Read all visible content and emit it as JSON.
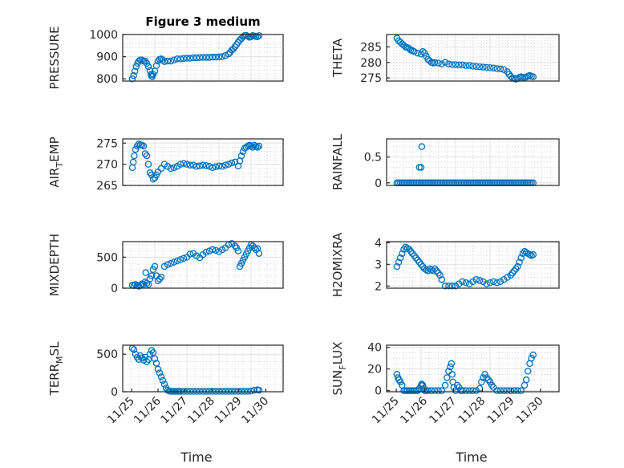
{
  "figure": {
    "x_label": "Time",
    "marker_color": "#0072BD"
  },
  "chart_data": [
    {
      "id": "pressure",
      "type": "scatter",
      "title": "Figure 3 medium",
      "ylabel": "PRESSURE",
      "ylabel_sub": "",
      "ylim": [
        790,
        1000
      ],
      "yticks": [
        800,
        900,
        1000
      ],
      "yminor_step": 20,
      "xlim": [
        0,
        5
      ],
      "xticks": [],
      "xticklabels": [],
      "x": [
        0.3,
        0.34,
        0.38,
        0.42,
        0.46,
        0.5,
        0.55,
        0.6,
        0.65,
        0.7,
        0.75,
        0.8,
        0.85,
        0.88,
        0.9,
        0.92,
        0.95,
        1.0,
        1.05,
        1.1,
        1.15,
        1.2,
        1.25,
        1.3,
        1.4,
        1.5,
        1.6,
        1.7,
        1.8,
        1.9,
        2.0,
        2.1,
        2.2,
        2.3,
        2.4,
        2.5,
        2.6,
        2.7,
        2.8,
        2.9,
        3.0,
        3.1,
        3.2,
        3.3,
        3.35,
        3.4,
        3.45,
        3.5,
        3.55,
        3.6,
        3.65,
        3.7,
        3.75,
        3.8,
        3.85,
        3.9,
        3.95,
        4.0,
        4.05,
        4.1,
        4.15,
        4.2,
        4.25
      ],
      "y": [
        800,
        815,
        835,
        855,
        870,
        880,
        885,
        885,
        880,
        880,
        870,
        855,
        838,
        820,
        812,
        810,
        820,
        835,
        860,
        880,
        888,
        890,
        885,
        878,
        880,
        880,
        885,
        890,
        890,
        892,
        893,
        893,
        895,
        895,
        896,
        897,
        897,
        897,
        898,
        898,
        899,
        900,
        905,
        912,
        920,
        930,
        935,
        945,
        955,
        965,
        975,
        982,
        990,
        995,
        996,
        992,
        988,
        990,
        995,
        993,
        991,
        990,
        995
      ]
    },
    {
      "id": "theta",
      "type": "scatter",
      "title": "",
      "ylabel": "THETA",
      "ylabel_sub": "",
      "ylim": [
        274,
        289
      ],
      "yticks": [
        275,
        280,
        285
      ],
      "yminor_step": 1,
      "xlim": [
        0,
        5
      ],
      "xticks": [],
      "xticklabels": [],
      "x": [
        0.3,
        0.35,
        0.4,
        0.45,
        0.5,
        0.55,
        0.6,
        0.65,
        0.7,
        0.75,
        0.8,
        0.9,
        1.0,
        1.05,
        1.1,
        1.15,
        1.2,
        1.25,
        1.3,
        1.35,
        1.4,
        1.5,
        1.6,
        1.7,
        1.8,
        1.9,
        2.0,
        2.1,
        2.2,
        2.3,
        2.4,
        2.5,
        2.6,
        2.7,
        2.8,
        2.9,
        3.0,
        3.1,
        3.2,
        3.3,
        3.4,
        3.5,
        3.55,
        3.6,
        3.65,
        3.7,
        3.75,
        3.8,
        3.85,
        3.9,
        3.95,
        4.0,
        4.05,
        4.1,
        4.15,
        4.2,
        4.25
      ],
      "y": [
        287.8,
        287,
        286.5,
        286,
        285.5,
        285,
        284.8,
        284.5,
        284,
        283.8,
        283.5,
        283,
        282.7,
        283.5,
        283,
        282,
        281,
        280.5,
        280,
        279.8,
        280,
        279.8,
        279.5,
        280,
        279.5,
        279.3,
        279.3,
        279.2,
        279.2,
        279,
        279,
        278.8,
        278.7,
        278.6,
        278.5,
        278.4,
        278.3,
        278.2,
        278,
        277.9,
        277.7,
        277,
        276.2,
        275.5,
        275,
        274.8,
        274.6,
        274.8,
        275.2,
        275.4,
        275.2,
        275.1,
        275.3,
        275.6,
        275.8,
        275.5,
        275.4
      ]
    },
    {
      "id": "air_temp",
      "type": "scatter",
      "title": "",
      "ylabel": "AIR",
      "ylabel_sub": "T",
      "ylabel_tail": "EMP",
      "ylim": [
        265,
        276
      ],
      "yticks": [
        265,
        270,
        275
      ],
      "yminor_step": 1,
      "xlim": [
        0,
        5
      ],
      "xticks": [],
      "xticklabels": [],
      "x": [
        0.3,
        0.33,
        0.36,
        0.4,
        0.45,
        0.5,
        0.55,
        0.6,
        0.65,
        0.7,
        0.75,
        0.8,
        0.85,
        0.9,
        0.95,
        1.0,
        1.05,
        1.1,
        1.2,
        1.3,
        1.4,
        1.5,
        1.6,
        1.7,
        1.8,
        1.9,
        2.0,
        2.1,
        2.2,
        2.3,
        2.4,
        2.5,
        2.6,
        2.7,
        2.8,
        2.9,
        3.0,
        3.1,
        3.2,
        3.3,
        3.4,
        3.5,
        3.6,
        3.65,
        3.7,
        3.75,
        3.8,
        3.85,
        3.9,
        3.95,
        4.0,
        4.05,
        4.1,
        4.15,
        4.2,
        4.25
      ],
      "y": [
        269.2,
        270.5,
        272,
        273.5,
        274.3,
        274.8,
        274.6,
        274.5,
        274.3,
        272.5,
        272,
        270,
        268,
        267.5,
        266.5,
        266.8,
        267.5,
        268.2,
        269,
        270,
        269.5,
        269,
        269.2,
        269.5,
        270,
        270.2,
        270,
        269.8,
        269.8,
        269.5,
        269.6,
        269.8,
        269.7,
        269.5,
        269.2,
        269.4,
        269.6,
        269.5,
        269.8,
        270,
        270.3,
        270.5,
        269.6,
        270.8,
        272,
        273,
        273.8,
        274,
        274.3,
        274.5,
        274.3,
        274,
        274.5,
        274.2,
        274,
        274.3
      ]
    },
    {
      "id": "rainfall",
      "type": "scatter",
      "title": "",
      "ylabel": "RAINFALL",
      "ylabel_sub": "",
      "ylim": [
        -0.05,
        0.85
      ],
      "yticks": [
        0,
        0.5
      ],
      "yminor_step": 0.1,
      "xlim": [
        0,
        5
      ],
      "xticks": [],
      "xticklabels": [],
      "x": [
        0.3,
        0.35,
        0.4,
        0.45,
        0.5,
        0.55,
        0.6,
        0.65,
        0.7,
        0.75,
        0.8,
        0.85,
        0.9,
        0.95,
        1.0,
        1.05,
        1.1,
        1.15,
        1.2,
        1.25,
        1.3,
        1.35,
        1.4,
        1.45,
        1.5,
        1.55,
        1.6,
        1.65,
        1.7,
        1.75,
        1.8,
        1.85,
        1.9,
        1.95,
        2.0,
        2.05,
        2.1,
        2.15,
        2.2,
        2.25,
        2.3,
        2.35,
        2.4,
        2.45,
        2.5,
        2.55,
        2.6,
        2.65,
        2.7,
        2.75,
        2.8,
        2.85,
        2.9,
        2.95,
        3.0,
        3.05,
        3.1,
        3.15,
        3.2,
        3.25,
        3.3,
        3.35,
        3.4,
        3.45,
        3.5,
        3.55,
        3.6,
        3.65,
        3.7,
        3.75,
        3.8,
        3.85,
        3.9,
        3.95,
        4.0,
        4.05,
        4.1,
        4.15,
        4.2,
        4.25,
        0.95,
        1.0,
        1.02
      ],
      "y": [
        0,
        0,
        0,
        0,
        0,
        0,
        0,
        0,
        0,
        0,
        0,
        0,
        0,
        0,
        0,
        0,
        0,
        0,
        0,
        0,
        0,
        0,
        0,
        0,
        0,
        0,
        0,
        0,
        0,
        0,
        0,
        0,
        0,
        0,
        0,
        0,
        0,
        0,
        0,
        0,
        0,
        0,
        0,
        0,
        0,
        0,
        0,
        0,
        0,
        0,
        0,
        0,
        0,
        0,
        0,
        0,
        0,
        0,
        0,
        0,
        0,
        0,
        0,
        0,
        0,
        0,
        0,
        0,
        0,
        0,
        0,
        0,
        0,
        0,
        0,
        0,
        0,
        0,
        0,
        0,
        0.3,
        0.3,
        0.7
      ]
    },
    {
      "id": "mixdepth",
      "type": "scatter",
      "title": "",
      "ylabel": "MIXDEPTH",
      "ylabel_sub": "",
      "ylim": [
        0,
        750
      ],
      "yticks": [
        0,
        500
      ],
      "yminor_step": 100,
      "xlim": [
        0,
        5
      ],
      "xticks": [],
      "xticklabels": [],
      "x": [
        0.3,
        0.35,
        0.4,
        0.45,
        0.5,
        0.55,
        0.6,
        0.65,
        0.7,
        0.72,
        0.75,
        0.8,
        0.85,
        0.9,
        0.95,
        1.0,
        1.05,
        1.1,
        1.15,
        1.2,
        1.3,
        1.4,
        1.5,
        1.6,
        1.7,
        1.8,
        1.9,
        2.0,
        2.1,
        2.2,
        2.3,
        2.4,
        2.5,
        2.6,
        2.7,
        2.8,
        2.9,
        3.0,
        3.1,
        3.2,
        3.3,
        3.4,
        3.5,
        3.55,
        3.6,
        3.65,
        3.7,
        3.75,
        3.8,
        3.85,
        3.9,
        3.95,
        4.0,
        4.05,
        4.1,
        4.15,
        4.2,
        4.25
      ],
      "y": [
        50,
        40,
        60,
        45,
        30,
        50,
        70,
        60,
        100,
        250,
        80,
        60,
        150,
        200,
        300,
        350,
        200,
        120,
        150,
        180,
        350,
        380,
        400,
        420,
        440,
        460,
        480,
        500,
        550,
        560,
        520,
        490,
        540,
        580,
        600,
        620,
        610,
        590,
        620,
        650,
        700,
        720,
        680,
        650,
        600,
        350,
        400,
        450,
        500,
        550,
        600,
        650,
        700,
        680,
        650,
        620,
        640,
        560
      ]
    },
    {
      "id": "h2omixra",
      "type": "scatter",
      "title": "",
      "ylabel": "H2OMIXRA",
      "ylabel_sub": "",
      "ylim": [
        1.9,
        4.05
      ],
      "yticks": [
        2,
        3,
        4
      ],
      "yminor_step": 0.2,
      "xlim": [
        0,
        5
      ],
      "xticks": [],
      "xticklabels": [],
      "x": [
        0.3,
        0.35,
        0.4,
        0.45,
        0.5,
        0.55,
        0.6,
        0.65,
        0.7,
        0.75,
        0.8,
        0.85,
        0.9,
        0.95,
        1.0,
        1.05,
        1.1,
        1.15,
        1.2,
        1.25,
        1.3,
        1.35,
        1.4,
        1.45,
        1.5,
        1.55,
        1.6,
        1.7,
        1.8,
        1.9,
        2.0,
        2.1,
        2.2,
        2.3,
        2.4,
        2.5,
        2.6,
        2.7,
        2.8,
        2.9,
        3.0,
        3.1,
        3.2,
        3.3,
        3.4,
        3.5,
        3.6,
        3.65,
        3.7,
        3.75,
        3.8,
        3.85,
        3.9,
        3.95,
        4.0,
        4.05,
        4.1,
        4.15,
        4.2,
        4.25
      ],
      "y": [
        2.9,
        3.1,
        3.3,
        3.5,
        3.7,
        3.8,
        3.75,
        3.7,
        3.6,
        3.5,
        3.4,
        3.3,
        3.2,
        3.1,
        3.0,
        2.9,
        2.8,
        2.75,
        2.7,
        2.8,
        2.75,
        2.7,
        2.8,
        2.7,
        2.6,
        2.5,
        2.3,
        2.0,
        2.0,
        2.0,
        2.0,
        2.1,
        2.2,
        2.15,
        2.1,
        2.2,
        2.3,
        2.25,
        2.2,
        2.1,
        2.15,
        2.2,
        2.15,
        2.2,
        2.3,
        2.4,
        2.5,
        2.6,
        2.7,
        2.8,
        2.9,
        3.1,
        3.3,
        3.5,
        3.6,
        3.55,
        3.5,
        3.45,
        3.4,
        3.45
      ]
    },
    {
      "id": "terr_msl",
      "type": "scatter",
      "title": "",
      "ylabel": "TERR",
      "ylabel_sub": "M",
      "ylabel_tail": "SL",
      "ylim": [
        0,
        620
      ],
      "yticks": [
        0,
        500
      ],
      "yminor_step": 100,
      "xlim": [
        0,
        5
      ],
      "xticks": [
        0.28,
        1.1,
        1.94,
        2.78,
        3.62,
        4.46
      ],
      "xticklabels": [
        "11/25",
        "11/26",
        "11/27",
        "11/28",
        "11/29",
        "11/30"
      ],
      "x": [
        0.3,
        0.35,
        0.4,
        0.45,
        0.5,
        0.55,
        0.6,
        0.65,
        0.7,
        0.75,
        0.8,
        0.85,
        0.9,
        0.95,
        1.0,
        1.05,
        1.1,
        1.15,
        1.2,
        1.25,
        1.3,
        1.35,
        1.4,
        1.45,
        1.5,
        1.55,
        1.6,
        1.65,
        1.7,
        1.75,
        1.8,
        1.9,
        2.0,
        2.1,
        2.2,
        2.3,
        2.4,
        2.5,
        2.6,
        2.7,
        2.8,
        2.9,
        3.0,
        3.1,
        3.2,
        3.3,
        3.4,
        3.5,
        3.6,
        3.7,
        3.8,
        3.9,
        4.0,
        4.1,
        4.2,
        4.25
      ],
      "y": [
        580,
        560,
        500,
        460,
        430,
        480,
        450,
        420,
        460,
        400,
        430,
        500,
        550,
        520,
        440,
        380,
        300,
        250,
        200,
        150,
        100,
        50,
        20,
        10,
        5,
        5,
        5,
        5,
        5,
        5,
        5,
        5,
        5,
        5,
        5,
        5,
        5,
        5,
        5,
        5,
        5,
        5,
        5,
        5,
        5,
        5,
        5,
        5,
        5,
        5,
        5,
        5,
        10,
        20,
        25,
        20
      ]
    },
    {
      "id": "sun_flux",
      "type": "scatter",
      "title": "",
      "ylabel": "SUN",
      "ylabel_sub": "F",
      "ylabel_tail": "LUX",
      "ylim": [
        -1,
        42
      ],
      "yticks": [
        0,
        20,
        40
      ],
      "yminor_step": 5,
      "xlim": [
        0,
        5
      ],
      "xticks": [
        0.28,
        1.1,
        1.94,
        2.78,
        3.62,
        4.46
      ],
      "xticklabels": [
        "11/25",
        "11/26",
        "11/27",
        "11/28",
        "11/29",
        "11/30"
      ],
      "x": [
        0.3,
        0.33,
        0.36,
        0.4,
        0.45,
        0.5,
        0.55,
        0.6,
        0.65,
        0.7,
        0.75,
        0.8,
        0.85,
        0.9,
        0.95,
        1.0,
        1.02,
        1.05,
        1.08,
        1.1,
        1.15,
        1.2,
        1.3,
        1.4,
        1.5,
        1.6,
        1.7,
        1.75,
        1.8,
        1.85,
        1.88,
        1.9,
        1.92,
        1.95,
        2.0,
        2.05,
        2.1,
        2.15,
        2.2,
        2.3,
        2.4,
        2.5,
        2.6,
        2.7,
        2.75,
        2.8,
        2.85,
        2.9,
        2.95,
        3.0,
        3.05,
        3.1,
        3.2,
        3.3,
        3.4,
        3.5,
        3.6,
        3.7,
        3.8,
        3.9,
        4.0,
        4.05,
        4.1,
        4.15,
        4.2,
        4.25
      ],
      "y": [
        15,
        12,
        10,
        8,
        5,
        0,
        0,
        0,
        0,
        0,
        0,
        0,
        0,
        0,
        2,
        5,
        6,
        5,
        2,
        0,
        0,
        0,
        0,
        0,
        0,
        0,
        5,
        12,
        18,
        22,
        25,
        15,
        8,
        3,
        0,
        5,
        3,
        0,
        0,
        0,
        0,
        0,
        0,
        2,
        8,
        12,
        15,
        12,
        10,
        8,
        5,
        3,
        0,
        0,
        0,
        0,
        0,
        0,
        0,
        0,
        5,
        10,
        18,
        25,
        30,
        33
      ]
    }
  ]
}
